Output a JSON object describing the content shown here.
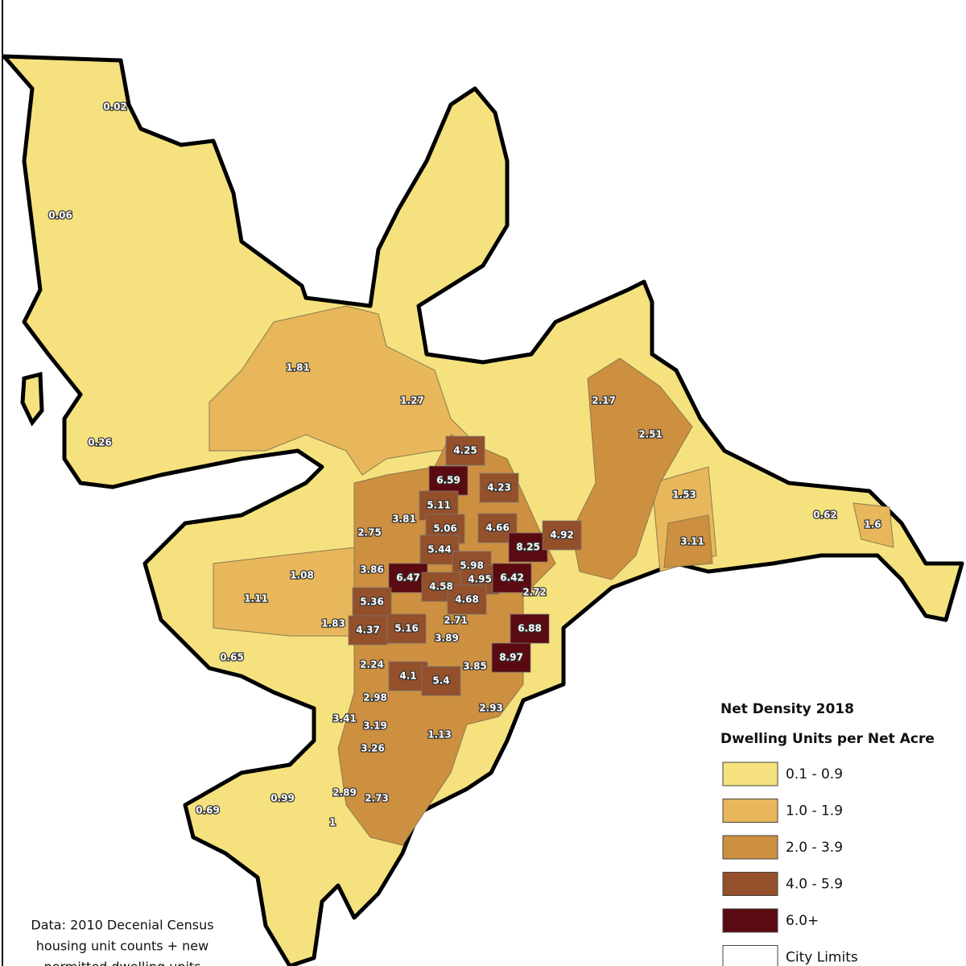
{
  "legend": {
    "title": "Net Density 2018",
    "subtitle": "Dwelling Units per Net Acre",
    "items": [
      {
        "label": "0.1 - 0.9",
        "color": "#f5e27e"
      },
      {
        "label": "1.0 - 1.9",
        "color": "#e8b75b"
      },
      {
        "label": "2.0 - 3.9",
        "color": "#cd8f40"
      },
      {
        "label": "4.0 - 5.9",
        "color": "#93502b"
      },
      {
        "label": "6.0+",
        "color": "#5a0a10"
      },
      {
        "label": "City Limits",
        "color": "#ffffff"
      }
    ]
  },
  "source": [
    "Data: 2010 Decenial Census",
    "housing unit counts + new",
    "permitted dwelling units"
  ],
  "regions": [
    {
      "label": "0.02",
      "color": "#f5e27e"
    },
    {
      "label": "0.06",
      "color": "#f5e27e"
    },
    {
      "label": "0.26",
      "color": "#f5e27e"
    },
    {
      "label": "1.81",
      "color": "#e8b75b"
    },
    {
      "label": "1.27",
      "color": "#e8b75b"
    },
    {
      "label": "2.17",
      "color": "#cd8f40"
    },
    {
      "label": "2.51",
      "color": "#cd8f40"
    },
    {
      "label": "4.25",
      "color": "#93502b"
    },
    {
      "label": "6.59",
      "color": "#5a0a10"
    },
    {
      "label": "4.23",
      "color": "#93502b"
    },
    {
      "label": "3.81",
      "color": "#cd8f40"
    },
    {
      "label": "5.11",
      "color": "#93502b"
    },
    {
      "label": "2.75",
      "color": "#cd8f40"
    },
    {
      "label": "5.06",
      "color": "#93502b"
    },
    {
      "label": "4.66",
      "color": "#93502b"
    },
    {
      "label": "8.25",
      "color": "#5a0a10"
    },
    {
      "label": "4.92",
      "color": "#93502b"
    },
    {
      "label": "1.53",
      "color": "#e8b75b"
    },
    {
      "label": "0.62",
      "color": "#f5e27e"
    },
    {
      "label": "1.6",
      "color": "#e8b75b"
    },
    {
      "label": "3.11",
      "color": "#cd8f40"
    },
    {
      "label": "5.44",
      "color": "#93502b"
    },
    {
      "label": "1.08",
      "color": "#e8b75b"
    },
    {
      "label": "3.86",
      "color": "#cd8f40"
    },
    {
      "label": "6.47",
      "color": "#5a0a10"
    },
    {
      "label": "5.98",
      "color": "#93502b"
    },
    {
      "label": "4.95",
      "color": "#93502b"
    },
    {
      "label": "6.42",
      "color": "#5a0a10"
    },
    {
      "label": "4.58",
      "color": "#93502b"
    },
    {
      "label": "2.72",
      "color": "#cd8f40"
    },
    {
      "label": "1.11",
      "color": "#e8b75b"
    },
    {
      "label": "5.36",
      "color": "#93502b"
    },
    {
      "label": "4.68",
      "color": "#93502b"
    },
    {
      "label": "1.83",
      "color": "#e8b75b"
    },
    {
      "label": "4.37",
      "color": "#93502b"
    },
    {
      "label": "5.16",
      "color": "#93502b"
    },
    {
      "label": "2.71",
      "color": "#cd8f40"
    },
    {
      "label": "6.88",
      "color": "#5a0a10"
    },
    {
      "label": "3.89",
      "color": "#cd8f40"
    },
    {
      "label": "0.65",
      "color": "#f5e27e"
    },
    {
      "label": "2.24",
      "color": "#cd8f40"
    },
    {
      "label": "8.97",
      "color": "#5a0a10"
    },
    {
      "label": "3.85",
      "color": "#cd8f40"
    },
    {
      "label": "4.1",
      "color": "#93502b"
    },
    {
      "label": "5.4",
      "color": "#93502b"
    },
    {
      "label": "2.98",
      "color": "#cd8f40"
    },
    {
      "label": "2.93",
      "color": "#cd8f40"
    },
    {
      "label": "3.41",
      "color": "#cd8f40"
    },
    {
      "label": "3.19",
      "color": "#cd8f40"
    },
    {
      "label": "1.13",
      "color": "#e8b75b"
    },
    {
      "label": "3.26",
      "color": "#cd8f40"
    },
    {
      "label": "0.99",
      "color": "#f5e27e"
    },
    {
      "label": "0.69",
      "color": "#f5e27e"
    },
    {
      "label": "2.89",
      "color": "#cd8f40"
    },
    {
      "label": "2.73",
      "color": "#cd8f40"
    },
    {
      "label": "1",
      "color": "#e8b75b"
    }
  ]
}
